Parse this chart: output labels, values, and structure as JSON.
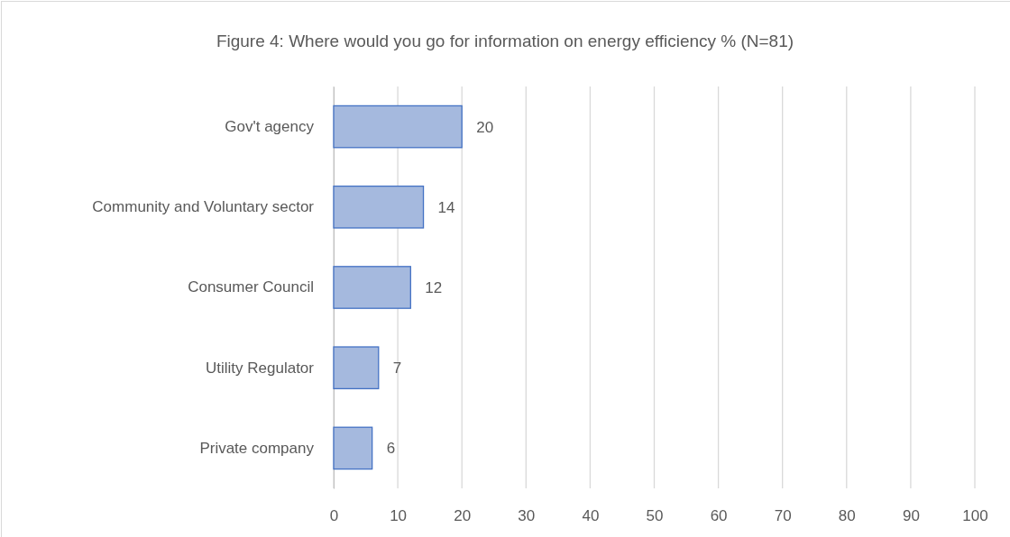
{
  "chart_data": {
    "type": "bar",
    "orientation": "horizontal",
    "title": "Figure 4: Where would you go for information on energy efficiency % (N=81)",
    "categories": [
      "Gov't agency",
      "Community and Voluntary sector",
      "Consumer Council",
      "Utility Regulator",
      "Private company"
    ],
    "values": [
      20,
      14,
      12,
      7,
      6
    ],
    "color": "#a5b9de",
    "xlim": [
      0,
      100
    ],
    "xticks": [
      0,
      10,
      20,
      30,
      40,
      50,
      60,
      70,
      80,
      90,
      100
    ],
    "grid": "x",
    "data_labels": true
  }
}
